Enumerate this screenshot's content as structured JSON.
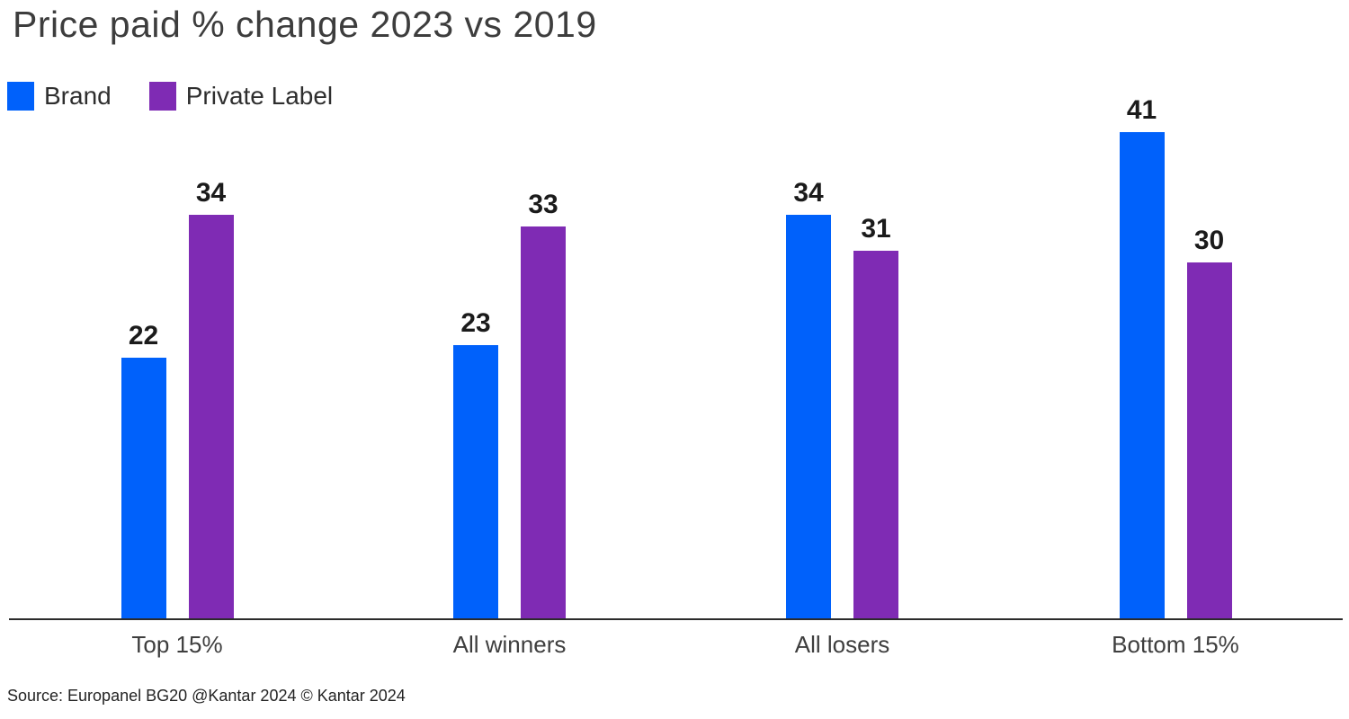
{
  "source": "Source: Europanel BG20 @Kantar 2024 © Kantar 2024",
  "colors": {
    "brand_blue": "#0061FB",
    "private_label_purple": "#7F2BB4",
    "title_text": "#3d3d3d",
    "value_label_text": "#1b1b1b",
    "axis_line": "#2b2b2b",
    "background": "#ffffff"
  },
  "chart_data": {
    "type": "bar",
    "title": "Price paid % change 2023 vs 2019",
    "categories": [
      "Top 15%",
      "All winners",
      "All losers",
      "Bottom 15%"
    ],
    "series": [
      {
        "name": "Brand",
        "color": "#0061FB",
        "values": [
          22,
          23,
          34,
          41
        ]
      },
      {
        "name": "Private Label",
        "color": "#7F2BB4",
        "values": [
          34,
          33,
          31,
          30
        ]
      }
    ],
    "value_labels_shown": true,
    "xlabel": "",
    "ylabel": "",
    "ylim": [
      0,
      45
    ],
    "gridlines": false,
    "y_axis_shown": false,
    "x_axis_baseline_shown": true,
    "legend_position": "top-left"
  }
}
